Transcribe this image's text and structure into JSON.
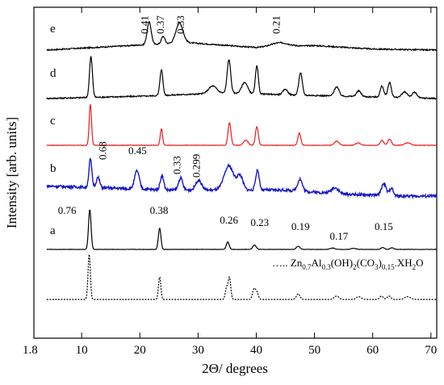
{
  "chart_data": {
    "type": "line",
    "title": "",
    "xlabel": "2Θ/ degrees",
    "ylabel": "Intensity [arb. units]",
    "xlim": [
      1.8,
      71
    ],
    "xticks": [
      {
        "value": 1.8,
        "label": "1.8"
      },
      {
        "value": 10,
        "label": "10"
      },
      {
        "value": 20,
        "label": "20"
      },
      {
        "value": 30,
        "label": "30"
      },
      {
        "value": 40,
        "label": "40"
      },
      {
        "value": 50,
        "label": "50"
      },
      {
        "value": 60,
        "label": "60"
      },
      {
        "value": 70,
        "label": "70"
      }
    ],
    "grid": false,
    "series": [
      {
        "id": "e",
        "color": "#000000",
        "dashed": false,
        "noise": 0.25,
        "baseline": [
          [
            4,
            0.0
          ],
          [
            20,
            1.0
          ],
          [
            28,
            1.5
          ],
          [
            40,
            0.5
          ],
          [
            50,
            0.9
          ],
          [
            60,
            0.2
          ],
          [
            71,
            0.0
          ]
        ],
        "peaks": [
          [
            21.6,
            4.5,
            0.35
          ],
          [
            24.0,
            1.5,
            0.3
          ],
          [
            26.8,
            4.0,
            0.6
          ],
          [
            44.0,
            0.8,
            1.5
          ]
        ]
      },
      {
        "id": "d",
        "color": "#000000",
        "dashed": false,
        "noise": 0.35,
        "baseline": [
          [
            4,
            0.0
          ],
          [
            20,
            0.6
          ],
          [
            35,
            1.5
          ],
          [
            45,
            1.0
          ],
          [
            71,
            0.0
          ]
        ],
        "peaks": [
          [
            11.6,
            11.0,
            0.25
          ],
          [
            23.7,
            7.0,
            0.25
          ],
          [
            32.5,
            2.0,
            0.7
          ],
          [
            35.3,
            9.0,
            0.3
          ],
          [
            38.0,
            3.0,
            0.5
          ],
          [
            40.1,
            7.5,
            0.25
          ],
          [
            45.0,
            1.5,
            0.4
          ],
          [
            47.6,
            6.0,
            0.3
          ],
          [
            53.8,
            2.5,
            0.4
          ],
          [
            57.6,
            1.5,
            0.4
          ],
          [
            61.6,
            3.0,
            0.3
          ],
          [
            62.9,
            4.0,
            0.3
          ],
          [
            65.5,
            1.5,
            0.5
          ],
          [
            67.2,
            1.5,
            0.4
          ]
        ]
      },
      {
        "id": "c",
        "color": "#ee1c1c",
        "dashed": false,
        "noise": 0.12,
        "baseline": [
          [
            4,
            0.0
          ],
          [
            71,
            0.0
          ]
        ],
        "peaks": [
          [
            11.5,
            10.0,
            0.2
          ],
          [
            23.7,
            4.0,
            0.2
          ],
          [
            35.4,
            5.5,
            0.25
          ],
          [
            38.2,
            1.2,
            0.4
          ],
          [
            40.1,
            4.5,
            0.25
          ],
          [
            47.4,
            3.0,
            0.25
          ],
          [
            53.8,
            1.0,
            0.4
          ],
          [
            57.5,
            0.6,
            0.4
          ],
          [
            61.6,
            1.2,
            0.3
          ],
          [
            62.9,
            1.5,
            0.3
          ],
          [
            66.0,
            0.6,
            0.5
          ]
        ]
      },
      {
        "id": "b",
        "color": "#1616cc",
        "dashed": false,
        "noise": 0.7,
        "baseline": [
          [
            4,
            2.5
          ],
          [
            15,
            2.0
          ],
          [
            25,
            1.5
          ],
          [
            35,
            1.5
          ],
          [
            45,
            1.5
          ],
          [
            55,
            0.5
          ],
          [
            65,
            0.0
          ],
          [
            71,
            0.0
          ]
        ],
        "peaks": [
          [
            11.5,
            7.0,
            0.25
          ],
          [
            12.8,
            2.5,
            0.3
          ],
          [
            19.5,
            4.5,
            0.4
          ],
          [
            23.8,
            3.5,
            0.3
          ],
          [
            27.0,
            3.0,
            0.35
          ],
          [
            30.1,
            2.5,
            0.5
          ],
          [
            35.3,
            6.0,
            0.8
          ],
          [
            37.2,
            3.5,
            0.5
          ],
          [
            40.2,
            5.0,
            0.3
          ],
          [
            47.5,
            3.0,
            0.4
          ],
          [
            53.5,
            1.5,
            0.6
          ],
          [
            61.9,
            3.0,
            0.4
          ],
          [
            63.2,
            2.0,
            0.3
          ]
        ]
      },
      {
        "id": "a",
        "color": "#000000",
        "dashed": false,
        "noise": 0.06,
        "baseline": [
          [
            4,
            0.0
          ],
          [
            71,
            0.0
          ]
        ],
        "peaks": [
          [
            11.4,
            7.5,
            0.22
          ],
          [
            23.4,
            4.0,
            0.22
          ],
          [
            35.1,
            1.4,
            0.25
          ],
          [
            39.7,
            0.8,
            0.3
          ],
          [
            47.2,
            0.6,
            0.3
          ],
          [
            53.1,
            0.25,
            0.4
          ],
          [
            56.7,
            0.2,
            0.4
          ],
          [
            61.7,
            0.35,
            0.3
          ],
          [
            63.3,
            0.3,
            0.3
          ]
        ]
      },
      {
        "id": "ref",
        "color": "#000000",
        "dashed": true,
        "noise": 0.0,
        "baseline": [
          [
            4,
            0.0
          ],
          [
            71,
            0.0
          ]
        ],
        "peaks": [
          [
            11.3,
            8.0,
            0.2
          ],
          [
            23.4,
            4.0,
            0.2
          ],
          [
            34.9,
            2.0,
            0.22
          ],
          [
            35.4,
            3.8,
            0.22
          ],
          [
            39.6,
            1.8,
            0.25
          ],
          [
            40.1,
            1.2,
            0.25
          ],
          [
            47.2,
            1.0,
            0.3
          ],
          [
            53.8,
            0.6,
            0.4
          ],
          [
            57.6,
            0.5,
            0.4
          ],
          [
            61.5,
            0.6,
            0.3
          ],
          [
            62.8,
            0.6,
            0.3
          ],
          [
            66.0,
            0.5,
            0.5
          ]
        ]
      }
    ],
    "trace_labels": [
      "e",
      "d",
      "c",
      "b",
      "a"
    ],
    "annotations": [
      {
        "trace": "e",
        "text": "0.41",
        "x": 21.4,
        "rotated": true
      },
      {
        "trace": "e",
        "text": "0.37",
        "x": 24.1,
        "rotated": true
      },
      {
        "trace": "e",
        "text": "0.33",
        "x": 27.6,
        "rotated": true
      },
      {
        "trace": "e",
        "text": "0.21",
        "x": 44.0,
        "rotated": true
      },
      {
        "trace": "b",
        "text": "0.68",
        "x": 14.2,
        "rotated": true
      },
      {
        "trace": "b",
        "text": "0.45",
        "x": 19.6,
        "rotated": false
      },
      {
        "trace": "b",
        "text": "0.33",
        "x": 27.0,
        "rotated": true
      },
      {
        "trace": "b",
        "text": "0.299",
        "x": 30.3,
        "rotated": true
      },
      {
        "trace": "a",
        "text": "0.76",
        "x": 7.5,
        "rotated": false
      },
      {
        "trace": "a",
        "text": "0.38",
        "x": 23.3,
        "rotated": false
      },
      {
        "trace": "a",
        "text": "0.26",
        "x": 35.3,
        "rotated": false
      },
      {
        "trace": "a",
        "text": "0.23",
        "x": 40.6,
        "rotated": false
      },
      {
        "trace": "a",
        "text": "0.19",
        "x": 47.6,
        "rotated": false
      },
      {
        "trace": "a",
        "text": "0.17",
        "x": 54.2,
        "rotated": false
      },
      {
        "trace": "a",
        "text": "0.15",
        "x": 61.9,
        "rotated": false
      }
    ],
    "reference_label": {
      "prefix": "….. ",
      "parts": [
        {
          "t": "Zn",
          "sub": false
        },
        {
          "t": "0.7",
          "sub": true
        },
        {
          "t": "Al",
          "sub": false
        },
        {
          "t": "0.3",
          "sub": true
        },
        {
          "t": "(OH)",
          "sub": false
        },
        {
          "t": "2",
          "sub": true
        },
        {
          "t": "(CO",
          "sub": false
        },
        {
          "t": "3",
          "sub": true
        },
        {
          "t": ")",
          "sub": false
        },
        {
          "t": "0.15",
          "sub": true
        },
        {
          "t": ".XH",
          "sub": false
        },
        {
          "t": "2",
          "sub": true
        },
        {
          "t": "O",
          "sub": false
        }
      ]
    }
  }
}
